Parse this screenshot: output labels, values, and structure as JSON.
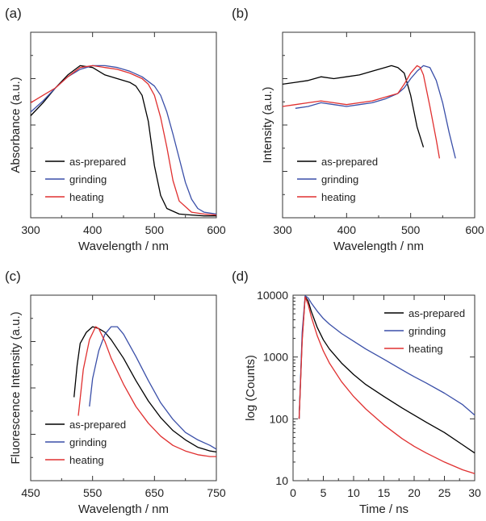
{
  "chart_data": [
    {
      "panel": "(a)",
      "type": "line",
      "xlabel": "Wavelength / nm",
      "ylabel": "Absorbance (a.u.)",
      "xlim": [
        300,
        600
      ],
      "ylim": [
        0,
        1
      ],
      "xticks": [
        300,
        400,
        500,
        600
      ],
      "y_tick_labels": false,
      "legend_position": "bottom-left",
      "series": [
        {
          "name": "as-prepared",
          "color": "#000000",
          "x": [
            300,
            320,
            340,
            360,
            380,
            400,
            420,
            440,
            460,
            470,
            480,
            490,
            500,
            510,
            520,
            540,
            560,
            580,
            600
          ],
          "y": [
            0.55,
            0.62,
            0.7,
            0.77,
            0.82,
            0.81,
            0.77,
            0.75,
            0.73,
            0.71,
            0.66,
            0.52,
            0.28,
            0.12,
            0.05,
            0.02,
            0.015,
            0.01,
            0.01
          ]
        },
        {
          "name": "grinding",
          "color": "#3a4fa8",
          "x": [
            300,
            320,
            340,
            360,
            380,
            400,
            420,
            440,
            460,
            480,
            500,
            510,
            520,
            530,
            540,
            550,
            560,
            570,
            580,
            600
          ],
          "y": [
            0.57,
            0.63,
            0.7,
            0.76,
            0.8,
            0.82,
            0.82,
            0.81,
            0.79,
            0.76,
            0.71,
            0.66,
            0.57,
            0.45,
            0.32,
            0.19,
            0.1,
            0.05,
            0.03,
            0.02
          ]
        },
        {
          "name": "heating",
          "color": "#e03030",
          "x": [
            300,
            320,
            340,
            360,
            380,
            400,
            420,
            440,
            460,
            480,
            490,
            500,
            510,
            520,
            530,
            540,
            560,
            580,
            600
          ],
          "y": [
            0.62,
            0.66,
            0.7,
            0.76,
            0.81,
            0.82,
            0.81,
            0.8,
            0.78,
            0.75,
            0.72,
            0.66,
            0.54,
            0.38,
            0.2,
            0.09,
            0.03,
            0.02,
            0.015
          ]
        }
      ]
    },
    {
      "panel": "(b)",
      "type": "line",
      "xlabel": "Wavelength / nm",
      "ylabel": "Intensity (a.u.)",
      "xlim": [
        300,
        600
      ],
      "ylim": [
        0,
        1
      ],
      "xticks": [
        300,
        400,
        500,
        600
      ],
      "y_tick_labels": false,
      "legend_position": "bottom-left",
      "series": [
        {
          "name": "as-prepared",
          "color": "#000000",
          "x": [
            300,
            320,
            340,
            360,
            380,
            400,
            420,
            440,
            460,
            470,
            480,
            490,
            500,
            510,
            520
          ],
          "y": [
            0.72,
            0.73,
            0.74,
            0.76,
            0.75,
            0.76,
            0.77,
            0.79,
            0.81,
            0.82,
            0.81,
            0.78,
            0.66,
            0.49,
            0.38
          ]
        },
        {
          "name": "grinding",
          "color": "#3a4fa8",
          "x": [
            320,
            340,
            360,
            380,
            400,
            420,
            440,
            460,
            480,
            490,
            500,
            510,
            520,
            530,
            540,
            550,
            560,
            570
          ],
          "y": [
            0.59,
            0.6,
            0.62,
            0.61,
            0.6,
            0.61,
            0.62,
            0.64,
            0.67,
            0.7,
            0.75,
            0.79,
            0.82,
            0.81,
            0.74,
            0.62,
            0.46,
            0.32
          ]
        },
        {
          "name": "heating",
          "color": "#e03030",
          "x": [
            300,
            320,
            340,
            360,
            380,
            400,
            420,
            440,
            460,
            480,
            490,
            500,
            510,
            515,
            520,
            530,
            540,
            545
          ],
          "y": [
            0.6,
            0.61,
            0.62,
            0.63,
            0.62,
            0.61,
            0.62,
            0.63,
            0.65,
            0.67,
            0.72,
            0.78,
            0.82,
            0.81,
            0.77,
            0.6,
            0.42,
            0.32
          ]
        }
      ]
    },
    {
      "panel": "(c)",
      "type": "line",
      "xlabel": "Wavelength / nm",
      "ylabel": "Fluorescence Intensity (a.u.)",
      "xlim": [
        450,
        750
      ],
      "ylim": [
        0,
        1
      ],
      "xticks": [
        450,
        550,
        650,
        750
      ],
      "y_tick_labels": false,
      "legend_position": "bottom-left",
      "series": [
        {
          "name": "as-prepared",
          "color": "#000000",
          "x": [
            520,
            525,
            530,
            540,
            550,
            560,
            570,
            580,
            600,
            620,
            640,
            660,
            680,
            700,
            720,
            740,
            750
          ],
          "y": [
            0.45,
            0.62,
            0.74,
            0.8,
            0.83,
            0.82,
            0.8,
            0.76,
            0.66,
            0.54,
            0.43,
            0.34,
            0.27,
            0.22,
            0.18,
            0.16,
            0.155
          ]
        },
        {
          "name": "grinding",
          "color": "#3a4fa8",
          "x": [
            545,
            550,
            560,
            570,
            580,
            590,
            600,
            620,
            640,
            660,
            680,
            700,
            720,
            740,
            750
          ],
          "y": [
            0.4,
            0.55,
            0.7,
            0.79,
            0.83,
            0.83,
            0.79,
            0.67,
            0.54,
            0.42,
            0.33,
            0.26,
            0.22,
            0.19,
            0.17
          ]
        },
        {
          "name": "heating",
          "color": "#e03030",
          "x": [
            527,
            535,
            545,
            555,
            560,
            570,
            580,
            600,
            620,
            640,
            660,
            680,
            700,
            720,
            740,
            750
          ],
          "y": [
            0.35,
            0.6,
            0.76,
            0.83,
            0.82,
            0.75,
            0.66,
            0.52,
            0.4,
            0.31,
            0.24,
            0.19,
            0.16,
            0.14,
            0.13,
            0.13
          ]
        }
      ]
    },
    {
      "panel": "(d)",
      "type": "line",
      "xlabel": "Time / ns",
      "ylabel": "log (Counts)",
      "xlim": [
        0,
        30
      ],
      "ylim": [
        10,
        10000
      ],
      "yscale": "log",
      "xticks": [
        0,
        5,
        10,
        15,
        20,
        25,
        30
      ],
      "yticks": [
        10,
        100,
        1000,
        10000
      ],
      "legend_position": "top-right",
      "series": [
        {
          "name": "as-prepared",
          "color": "#000000",
          "x": [
            1,
            1.5,
            2,
            2.5,
            3,
            4,
            5,
            6,
            8,
            10,
            12,
            15,
            18,
            20,
            22,
            25,
            28,
            30
          ],
          "y": [
            100,
            2000,
            9500,
            8000,
            5500,
            3000,
            1900,
            1350,
            800,
            520,
            360,
            230,
            150,
            115,
            88,
            60,
            38,
            28
          ]
        },
        {
          "name": "grinding",
          "color": "#3a4fa8",
          "x": [
            1,
            1.5,
            2,
            2.5,
            3,
            4,
            5,
            6,
            8,
            10,
            12,
            15,
            18,
            20,
            22,
            25,
            28,
            30
          ],
          "y": [
            100,
            2500,
            9800,
            9000,
            7500,
            5500,
            4200,
            3400,
            2400,
            1800,
            1350,
            920,
            620,
            480,
            380,
            260,
            170,
            115
          ]
        },
        {
          "name": "heating",
          "color": "#e03030",
          "x": [
            1,
            1.5,
            2,
            2.5,
            3,
            4,
            5,
            6,
            8,
            10,
            12,
            15,
            18,
            20,
            22,
            25,
            28,
            30
          ],
          "y": [
            100,
            1800,
            9400,
            7000,
            4500,
            2200,
            1250,
            800,
            400,
            230,
            145,
            80,
            48,
            36,
            28,
            20,
            15,
            13
          ]
        }
      ]
    }
  ]
}
